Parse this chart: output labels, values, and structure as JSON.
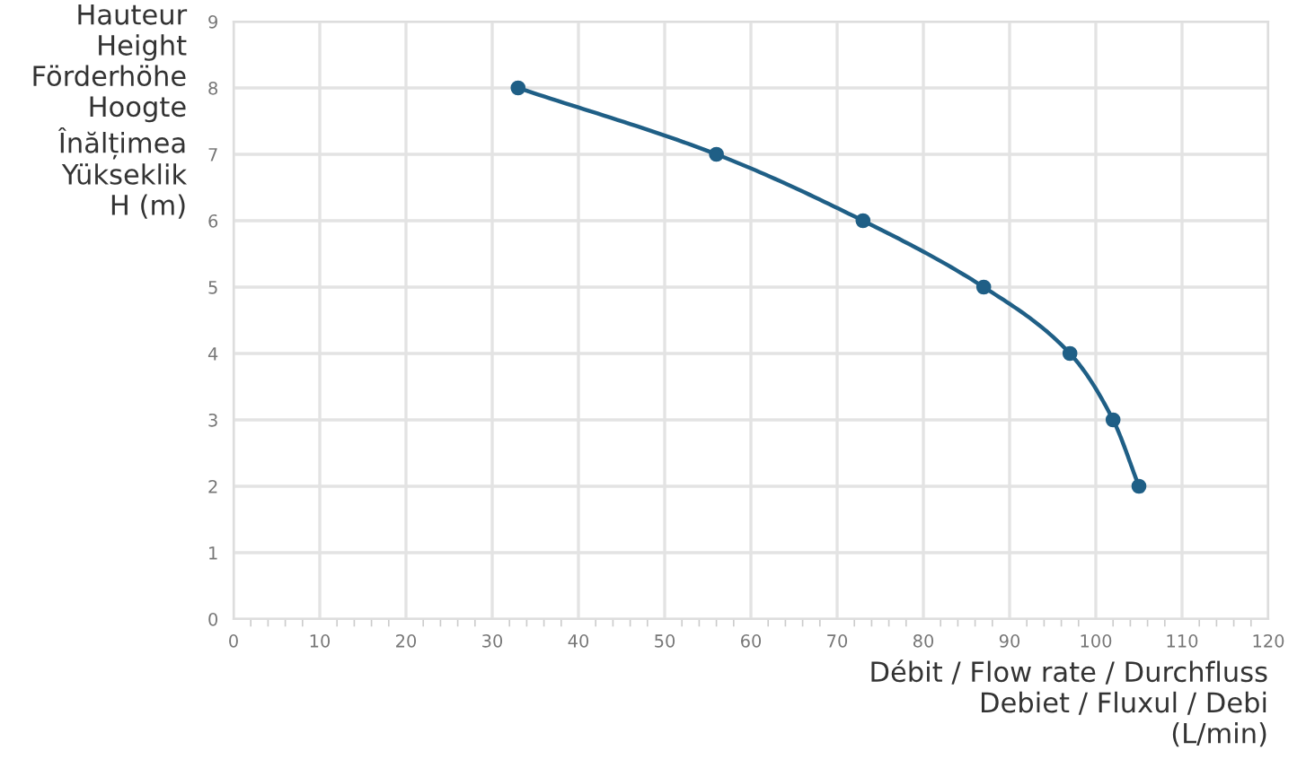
{
  "chart_data": {
    "type": "line",
    "ylabel": "Hauteur\nHeight\nFörderhöhe\nHoogte\nÎnălțimea\nYükseklik\nH (m)",
    "xlabel": "Débit / Flow rate / Durchfluss\nDebiet / Fluxul / Debi\n(L/min)",
    "x": [
      33,
      56,
      73,
      87,
      97,
      102,
      105
    ],
    "series": [
      {
        "color": "#1f5f86",
        "values": [
          8,
          7,
          6,
          5,
          4,
          3,
          2
        ]
      }
    ],
    "xlim": [
      0,
      120
    ],
    "xticks": [
      0,
      10,
      20,
      30,
      40,
      50,
      60,
      70,
      80,
      90,
      100,
      110,
      120
    ],
    "ylim": [
      0,
      9
    ],
    "yticks": [
      0,
      1,
      2,
      3,
      4,
      5,
      6,
      7,
      8,
      9
    ],
    "grid": true,
    "marker": "circle",
    "line_style": "solid"
  }
}
